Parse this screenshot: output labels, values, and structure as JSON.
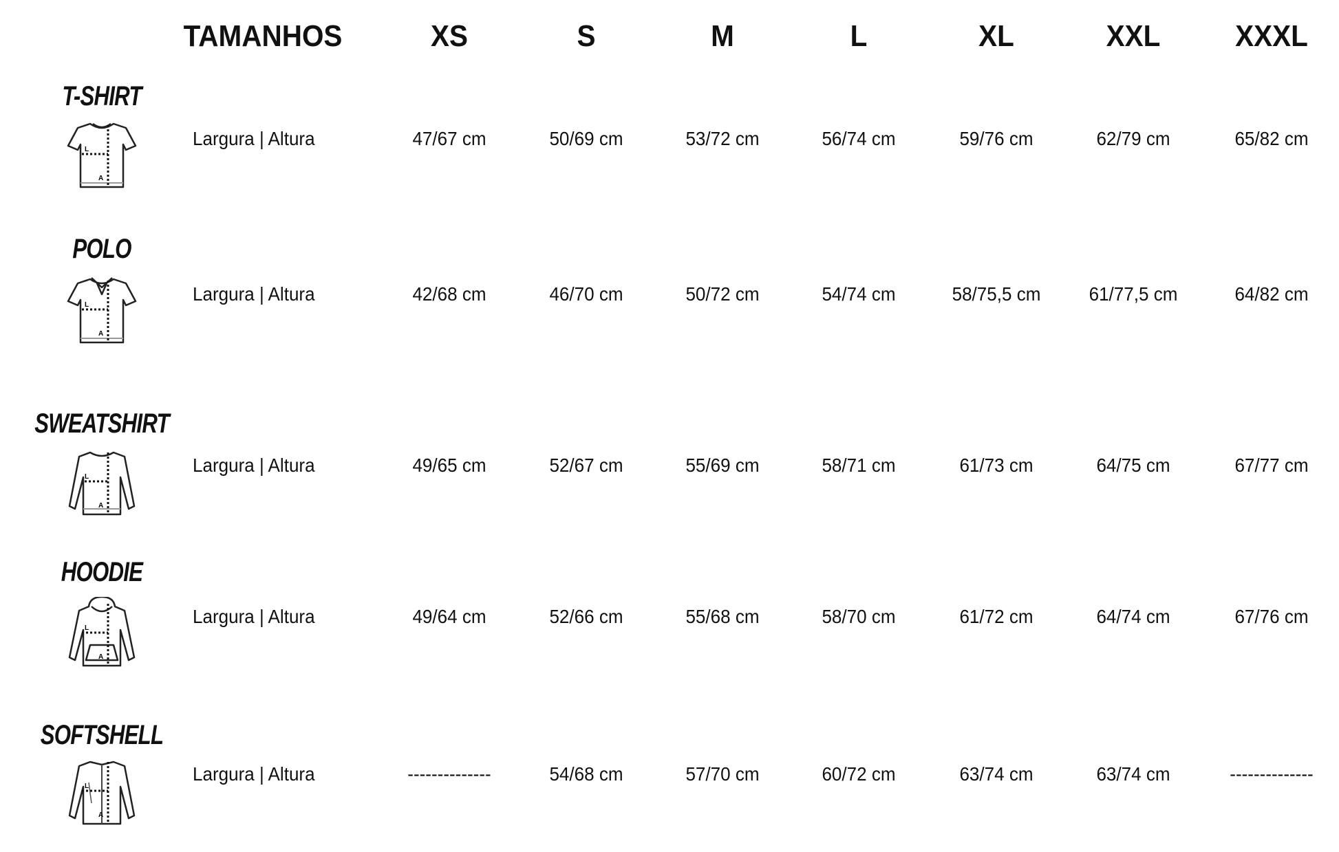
{
  "header": {
    "label": "TAMANHOS",
    "sizes": [
      "XS",
      "S",
      "M",
      "L",
      "XL",
      "XXL",
      "XXXL"
    ]
  },
  "products": [
    {
      "name": "T-SHIRT",
      "icon": "tshirt-icon",
      "measure_label": "Largura | Altura",
      "values": [
        "47/67 cm",
        "50/69 cm",
        "53/72 cm",
        "56/74 cm",
        "59/76 cm",
        "62/79 cm",
        "65/82 cm"
      ]
    },
    {
      "name": "POLO",
      "icon": "polo-icon",
      "measure_label": "Largura | Altura",
      "values": [
        "42/68 cm",
        "46/70 cm",
        "50/72 cm",
        "54/74 cm",
        "58/75,5 cm",
        "61/77,5 cm",
        "64/82 cm"
      ]
    },
    {
      "name": "SWEATSHIRT",
      "icon": "sweatshirt-icon",
      "measure_label": "Largura | Altura",
      "values": [
        "49/65 cm",
        "52/67 cm",
        "55/69 cm",
        "58/71 cm",
        "61/73 cm",
        "64/75 cm",
        "67/77 cm"
      ]
    },
    {
      "name": "HOODIE",
      "icon": "hoodie-icon",
      "measure_label": "Largura | Altura",
      "values": [
        "49/64 cm",
        "52/66 cm",
        "55/68 cm",
        "58/70 cm",
        "61/72 cm",
        "64/74 cm",
        "67/76 cm"
      ]
    },
    {
      "name": "SOFTSHELL",
      "icon": "softshell-icon",
      "measure_label": "Largura | Altura",
      "values": [
        "--------------",
        "54/68 cm",
        "57/70 cm",
        "60/72 cm",
        "63/74 cm",
        "63/74 cm",
        "--------------"
      ]
    }
  ],
  "icon_labels": {
    "width": "L",
    "height": "A"
  }
}
